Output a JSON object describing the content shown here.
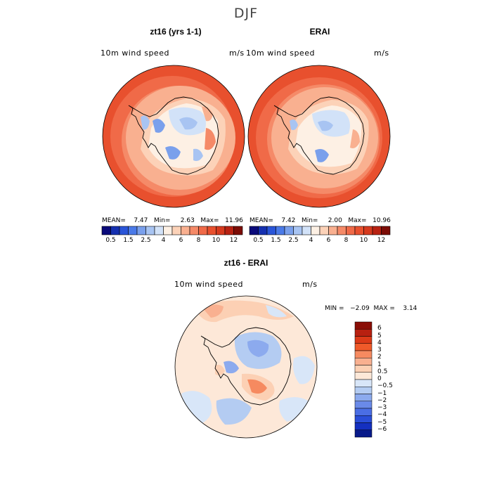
{
  "figure": {
    "season": "DJF"
  },
  "panels": [
    {
      "title": "zt16 (yrs 1-1)",
      "variable": "10m wind speed",
      "units": "m/s",
      "stats": "MEAN=    7.47   Min=     2.63   Max=   11.96"
    },
    {
      "title": "ERAI",
      "variable": "10m wind speed",
      "units": "m/s",
      "stats": "MEAN=    7.42   Min=     2.00   Max=   10.96"
    },
    {
      "title": "zt16 - ERAI",
      "variable": "10m wind speed",
      "units": "m/s",
      "stats": "MIN =   −2.09  MAX =    3.14"
    }
  ],
  "speed_colorbar": {
    "labels": [
      "0.5",
      "1.5",
      "2.5",
      "4",
      "6",
      "8",
      "10",
      "12"
    ],
    "colors": [
      "#0a0a7a",
      "#1530b0",
      "#2a55d8",
      "#4a7ae8",
      "#7aa0ec",
      "#a8c4f2",
      "#d2e2f8",
      "#fdf0e4",
      "#fcd2b8",
      "#f9b090",
      "#f58a68",
      "#f06a48",
      "#e8502e",
      "#d63a1e",
      "#b82212",
      "#7c0c06"
    ]
  },
  "diff_colorbar": {
    "labels": [
      "6",
      "5",
      "4",
      "3",
      "2",
      "1",
      "0.5",
      "0",
      "−0.5",
      "−1",
      "−2",
      "−3",
      "−4",
      "−5",
      "−6"
    ],
    "colors": [
      "#8a0e06",
      "#b82010",
      "#dc3a18",
      "#f05a2a",
      "#f68a60",
      "#f9b090",
      "#fcd0b4",
      "#fde8d8",
      "#d8e6f8",
      "#b4ccf2",
      "#8caaee",
      "#6a8ae8",
      "#4a6ee4",
      "#2a4ed8",
      "#1430c0",
      "#081a8a"
    ]
  }
}
